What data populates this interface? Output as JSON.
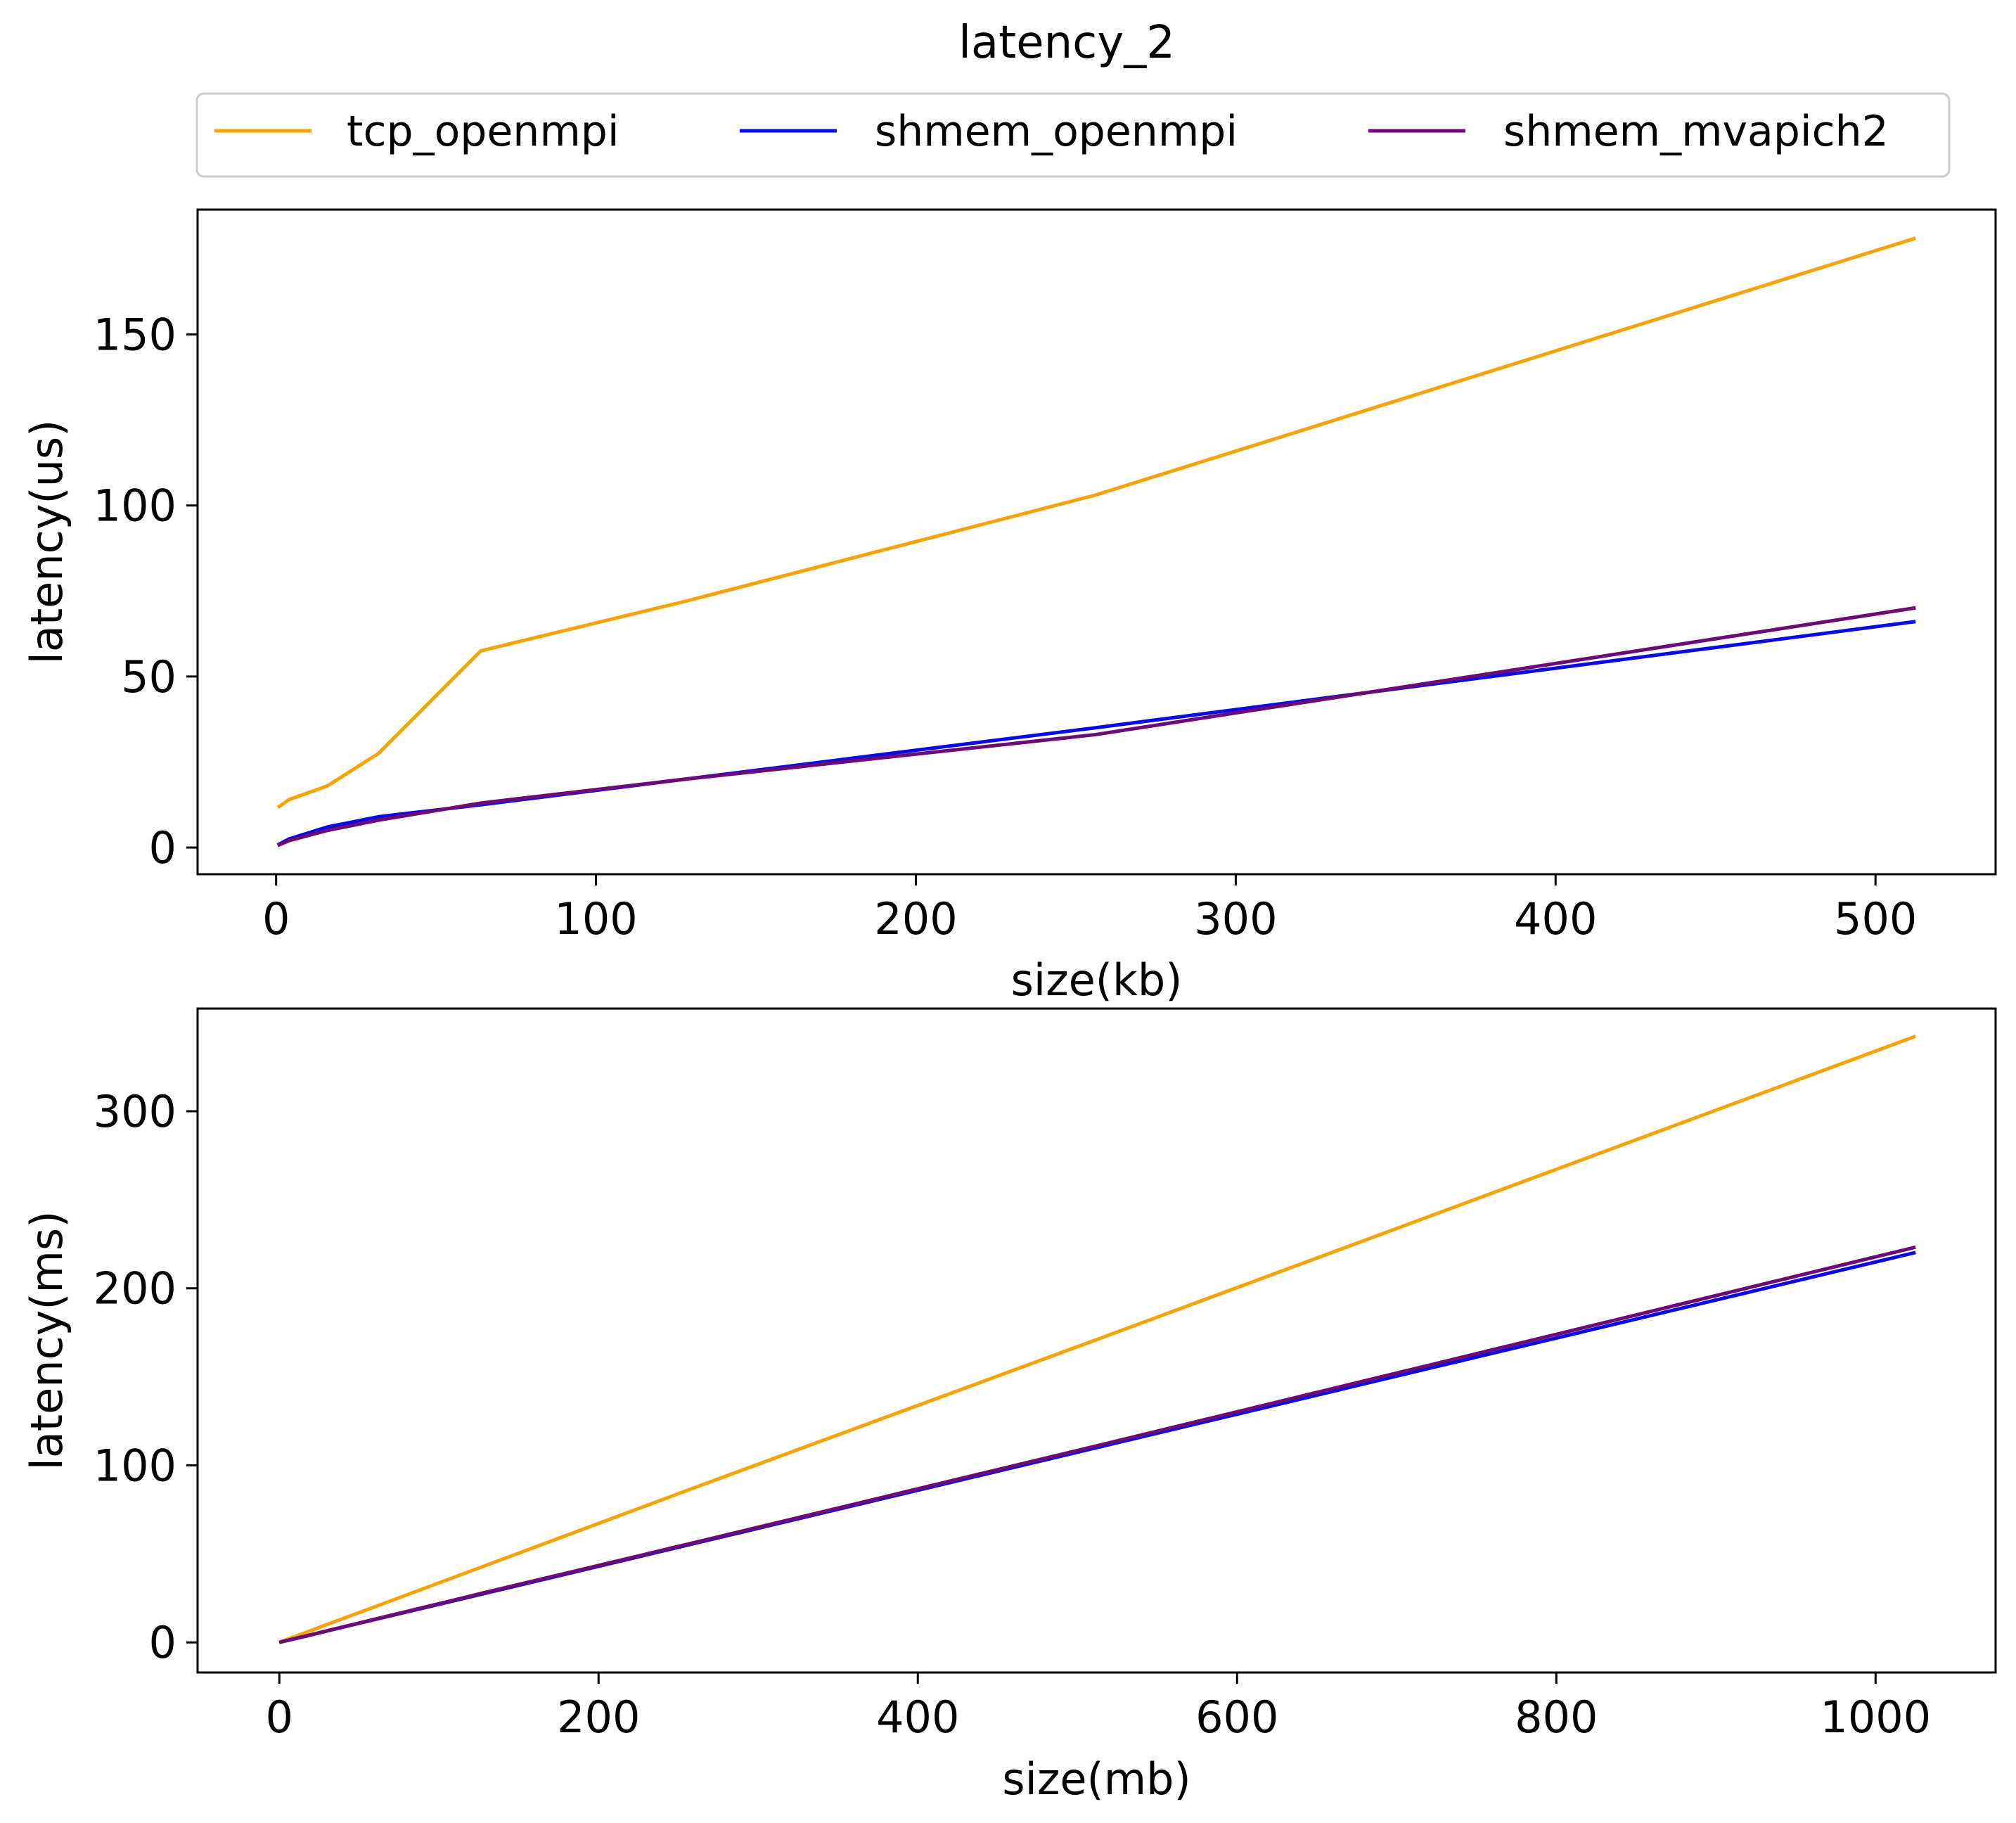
{
  "figure": {
    "title": "latency_2",
    "legend": {
      "placement": "top-center",
      "entries": [
        {
          "name": "tcp_openmpi",
          "color": "#f5a30a"
        },
        {
          "name": "shmem_openmpi",
          "color": "#0a0ae6"
        },
        {
          "name": "shmem_mvapich2",
          "color": "#6e0a78"
        }
      ]
    }
  },
  "chart_data": [
    {
      "type": "line",
      "title": "",
      "xlabel": "size(kb)",
      "ylabel": "latency(us)",
      "xlim": [
        -24.55,
        537.55
      ],
      "ylim": [
        -7.8,
        186.5
      ],
      "xticks": [
        0,
        100,
        200,
        300,
        400,
        500
      ],
      "yticks": [
        0,
        50,
        100,
        150
      ],
      "grid": false,
      "series": [
        {
          "name": "tcp_openmpi",
          "color": "#f5a30a",
          "x": [
            1,
            4,
            16,
            32,
            64,
            128,
            256,
            512
          ],
          "y": [
            12,
            14,
            18,
            27.5,
            57.5,
            72,
            103,
            178
          ]
        },
        {
          "name": "shmem_openmpi",
          "color": "#0a0ae6",
          "x": [
            1,
            4,
            16,
            32,
            64,
            128,
            256,
            512
          ],
          "y": [
            1,
            2.5,
            6,
            9,
            12.5,
            20,
            35,
            66
          ]
        },
        {
          "name": "shmem_mvapich2",
          "color": "#6e0a78",
          "x": [
            1,
            4,
            16,
            32,
            64,
            128,
            256,
            512
          ],
          "y": [
            0.8,
            2,
            5,
            8,
            13,
            20,
            33,
            70
          ]
        }
      ]
    },
    {
      "type": "line",
      "title": "",
      "xlabel": "size(mb)",
      "ylabel": "latency(ms)",
      "xlim": [
        -51.2,
        1075.2
      ],
      "ylim": [
        -17,
        358
      ],
      "xticks": [
        0,
        200,
        400,
        600,
        800,
        1000
      ],
      "yticks": [
        0,
        100,
        200,
        300
      ],
      "grid": false,
      "series": [
        {
          "name": "tcp_openmpi",
          "color": "#f5a30a",
          "x": [
            1,
            2,
            4,
            8,
            16,
            32,
            64,
            128,
            256,
            512,
            1024
          ],
          "y": [
            0.35,
            0.7,
            1.4,
            2.7,
            5.4,
            10.8,
            21.5,
            43,
            86,
            171,
            342
          ]
        },
        {
          "name": "shmem_openmpi",
          "color": "#0a0ae6",
          "x": [
            1,
            2,
            4,
            8,
            16,
            32,
            64,
            128,
            256,
            512,
            1024
          ],
          "y": [
            0.22,
            0.44,
            0.87,
            1.7,
            3.4,
            6.9,
            13.8,
            27.5,
            55,
            110,
            220
          ]
        },
        {
          "name": "shmem_mvapich2",
          "color": "#6e0a78",
          "x": [
            1,
            2,
            4,
            8,
            16,
            32,
            64,
            128,
            256,
            512,
            1024
          ],
          "y": [
            0.22,
            0.44,
            0.88,
            1.75,
            3.5,
            7,
            14,
            28,
            55.5,
            111,
            223
          ]
        }
      ]
    }
  ]
}
